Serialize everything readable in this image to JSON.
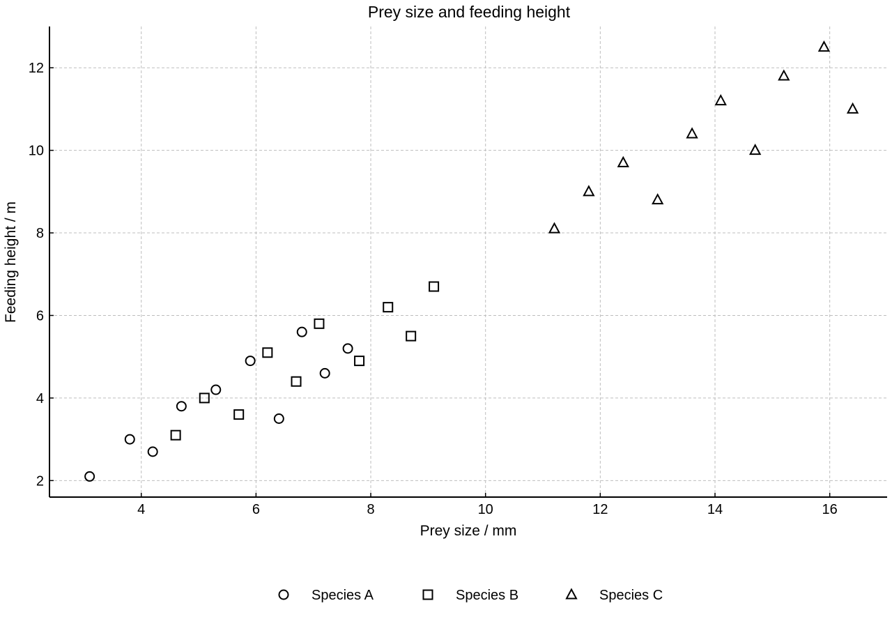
{
  "chart_data": {
    "type": "scatter",
    "title": "Prey size and feeding height",
    "xlabel": "Prey size / mm",
    "ylabel": "Feeding height / m",
    "xlim": [
      2.4,
      17
    ],
    "ylim": [
      1.6,
      13
    ],
    "xticks": [
      4,
      6,
      8,
      10,
      12,
      14,
      16
    ],
    "yticks": [
      2,
      4,
      6,
      8,
      10,
      12
    ],
    "grid": true,
    "legend_position": "bottom-center",
    "series": [
      {
        "name": "Species A",
        "marker": "circle",
        "color": "#000000",
        "points": [
          [
            3.1,
            2.1
          ],
          [
            3.8,
            3.0
          ],
          [
            4.2,
            2.7
          ],
          [
            4.7,
            3.8
          ],
          [
            5.3,
            4.2
          ],
          [
            5.9,
            4.9
          ],
          [
            6.4,
            3.5
          ],
          [
            6.8,
            5.6
          ],
          [
            7.2,
            4.6
          ],
          [
            7.6,
            5.2
          ]
        ]
      },
      {
        "name": "Species B",
        "marker": "square",
        "color": "#000000",
        "points": [
          [
            4.6,
            3.1
          ],
          [
            5.1,
            4.0
          ],
          [
            5.7,
            3.6
          ],
          [
            6.2,
            5.1
          ],
          [
            6.7,
            4.4
          ],
          [
            7.1,
            5.8
          ],
          [
            7.8,
            4.9
          ],
          [
            8.3,
            6.2
          ],
          [
            8.7,
            5.5
          ],
          [
            9.1,
            6.7
          ]
        ]
      },
      {
        "name": "Species C",
        "marker": "triangle",
        "color": "#000000",
        "points": [
          [
            11.2,
            8.1
          ],
          [
            11.8,
            9.0
          ],
          [
            12.4,
            9.7
          ],
          [
            13.0,
            8.8
          ],
          [
            13.6,
            10.4
          ],
          [
            14.1,
            11.2
          ],
          [
            14.7,
            10.0
          ],
          [
            15.2,
            11.8
          ],
          [
            15.9,
            12.5
          ],
          [
            16.4,
            11.0
          ]
        ]
      }
    ]
  }
}
